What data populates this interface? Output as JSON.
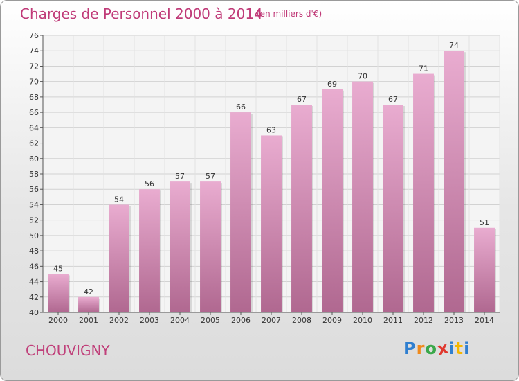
{
  "header": {
    "title": "Charges de Personnel 2000 à 2014",
    "subtitle": "(en milliers d'€)"
  },
  "commune": "CHOUVIGNY",
  "brand": {
    "letters": [
      "P",
      "r",
      "o",
      "x",
      "i",
      "t",
      "i"
    ],
    "colors": [
      "#2f7fd0",
      "#f08a1c",
      "#3aa84a",
      "#e0382e",
      "#2f7fd0",
      "#f5b700",
      "#2f7fd0"
    ]
  },
  "colors": {
    "bar_top": "#e9acd0",
    "bar_bottom": "#b06890",
    "title": "#c03a78"
  },
  "chart_data": {
    "type": "bar",
    "categories": [
      "2000",
      "2001",
      "2002",
      "2003",
      "2004",
      "2005",
      "2006",
      "2007",
      "2008",
      "2009",
      "2010",
      "2011",
      "2012",
      "2013",
      "2014"
    ],
    "values": [
      45,
      42,
      54,
      56,
      57,
      57,
      66,
      63,
      67,
      69,
      70,
      67,
      71,
      74,
      51
    ],
    "ylim": [
      40,
      76
    ],
    "yticks": [
      40,
      42,
      44,
      46,
      48,
      50,
      52,
      54,
      56,
      58,
      60,
      62,
      64,
      66,
      68,
      70,
      72,
      74,
      76
    ],
    "grid": true,
    "xlabel": "",
    "ylabel": ""
  }
}
